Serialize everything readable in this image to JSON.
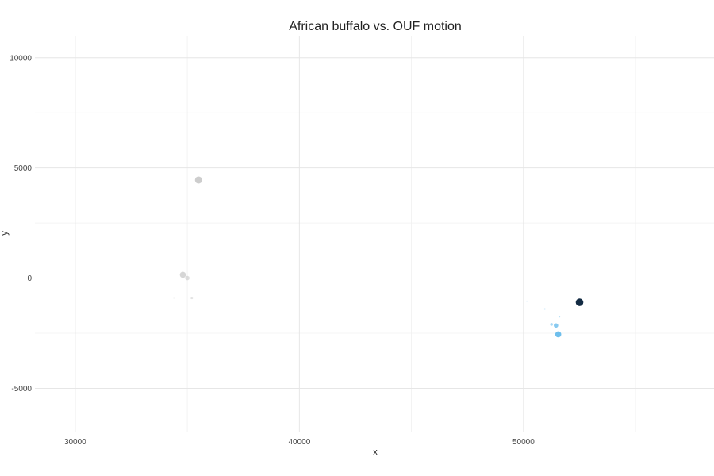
{
  "chart_data": {
    "type": "scatter",
    "title": "African buffalo vs. OUF motion",
    "xlabel": "x",
    "ylabel": "y",
    "xlim": [
      28200,
      58500
    ],
    "ylim": [
      -7000,
      11000
    ],
    "x_ticks": [
      30000,
      40000,
      50000
    ],
    "x_tick_labels": [
      "30000",
      "40000",
      "50000"
    ],
    "y_ticks": [
      -5000,
      0,
      5000,
      10000
    ],
    "y_tick_labels": [
      "-5000",
      "0",
      "5000",
      "10000"
    ],
    "x_minor_ticks": [
      35000,
      45000,
      55000
    ],
    "y_minor_ticks": [
      -2500,
      2500,
      7500
    ],
    "grid": true,
    "series": [
      {
        "color": "#c8c8c8",
        "points": [
          {
            "x": 35500,
            "y": 4450,
            "size": 4.5,
            "opacity": 0.9
          },
          {
            "x": 34800,
            "y": 150,
            "size": 3.8,
            "opacity": 0.75
          },
          {
            "x": 35000,
            "y": 0,
            "size": 2.8,
            "opacity": 0.6
          },
          {
            "x": 35200,
            "y": -900,
            "size": 1.6,
            "opacity": 0.5
          },
          {
            "x": 34400,
            "y": -900,
            "size": 1.0,
            "opacity": 0.35
          }
        ]
      },
      {
        "color": "#56b4e9",
        "points": [
          {
            "x": 51550,
            "y": -2550,
            "size": 3.8,
            "opacity": 0.85
          },
          {
            "x": 51450,
            "y": -2150,
            "size": 2.8,
            "opacity": 0.7
          },
          {
            "x": 51250,
            "y": -2100,
            "size": 1.8,
            "opacity": 0.5
          },
          {
            "x": 51600,
            "y": -1750,
            "size": 1.2,
            "opacity": 0.45
          },
          {
            "x": 50950,
            "y": -1400,
            "size": 1.0,
            "opacity": 0.35
          },
          {
            "x": 50150,
            "y": -1050,
            "size": 0.8,
            "opacity": 0.25
          }
        ]
      },
      {
        "color": "#132b43",
        "points": [
          {
            "x": 52500,
            "y": -1100,
            "size": 4.8,
            "opacity": 1.0
          }
        ]
      }
    ]
  }
}
